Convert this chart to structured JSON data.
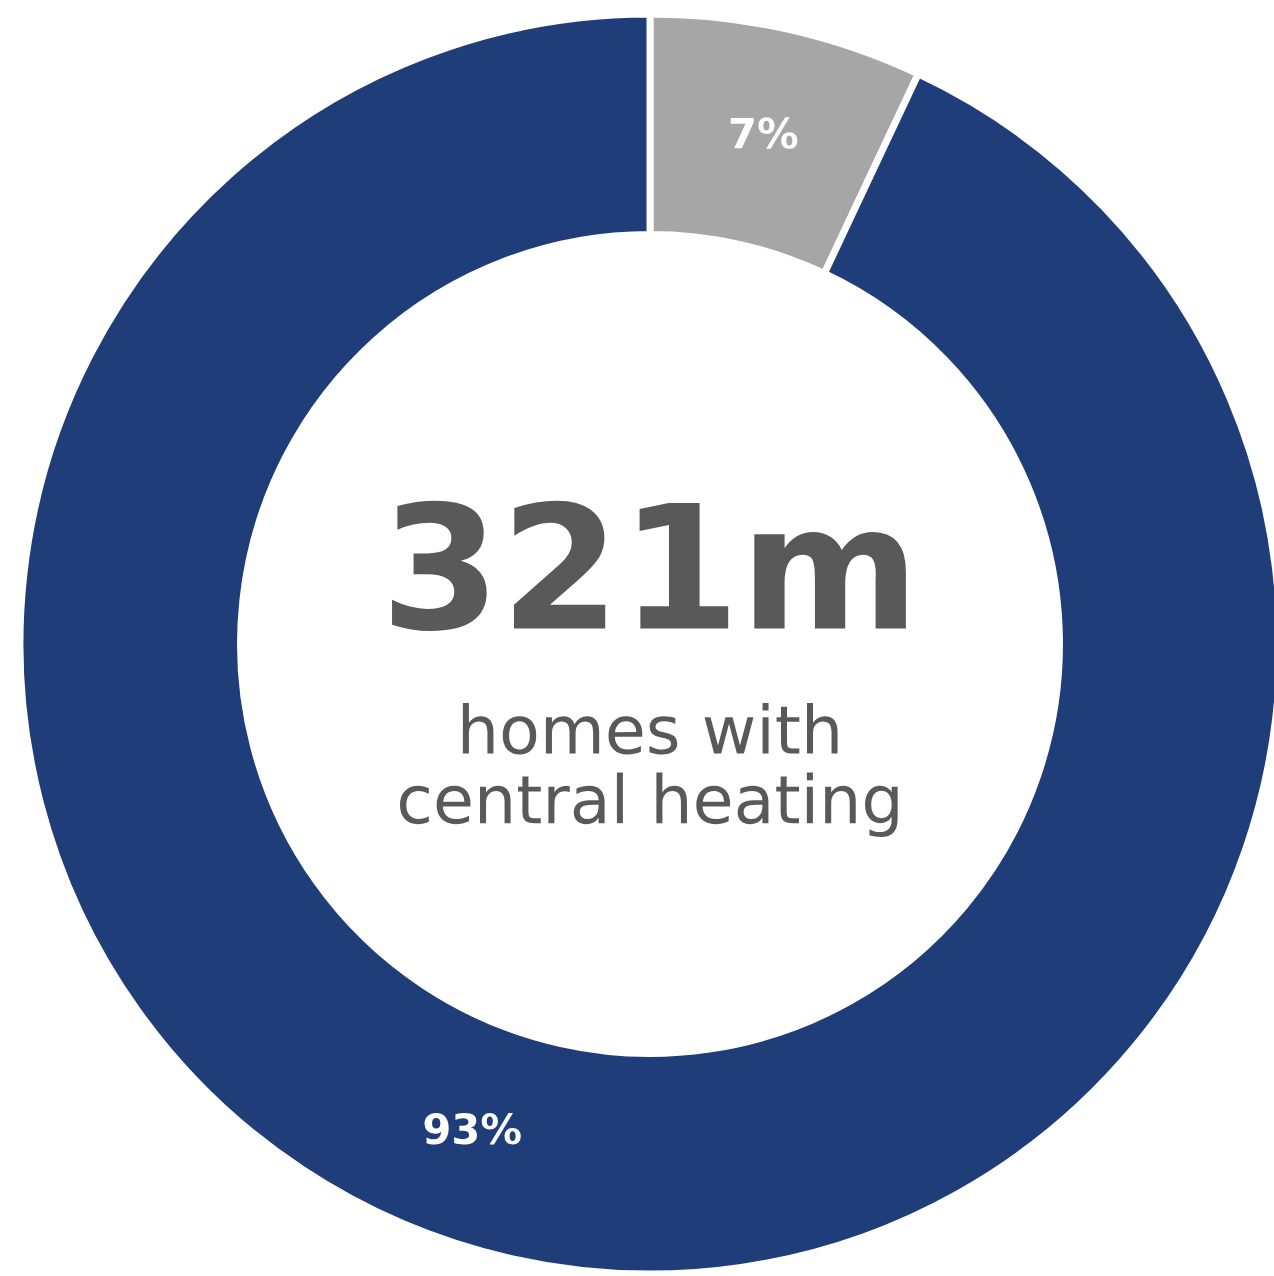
{
  "chart_data": {
    "type": "donut",
    "categories": [
      null,
      null
    ],
    "values": [
      7,
      93
    ],
    "colors": [
      "#a6a6a6",
      "#1f3d78"
    ],
    "value_labels": [
      "7%",
      "93%"
    ],
    "annotations": [
      "321m",
      "homes with\ncentral heating"
    ],
    "legend": false
  }
}
